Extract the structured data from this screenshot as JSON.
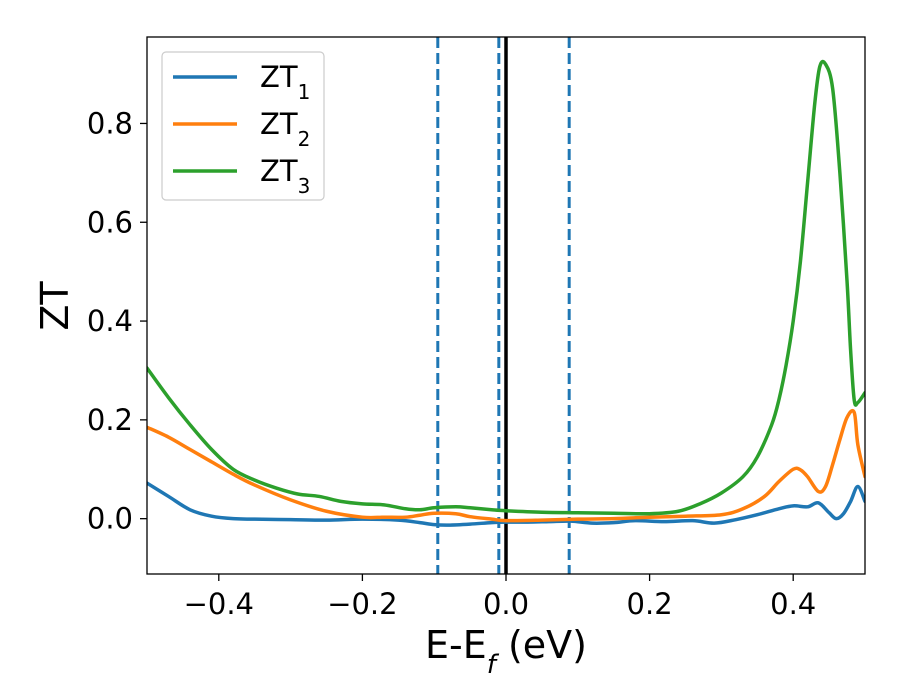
{
  "chart_data": {
    "type": "line",
    "title": "",
    "xlabel": {
      "main": "E-E",
      "sub": "f",
      "unit": " (eV)"
    },
    "ylabel": "ZT",
    "xlim": [
      -0.5,
      0.5
    ],
    "ylim": [
      -0.112,
      0.975
    ],
    "xticks": [
      -0.4,
      -0.2,
      0.0,
      0.2,
      0.4
    ],
    "xtick_labels": [
      "−0.4",
      "−0.2",
      "0.0",
      "0.2",
      "0.4"
    ],
    "yticks": [
      0.0,
      0.2,
      0.4,
      0.6,
      0.8
    ],
    "ytick_labels": [
      "0.0",
      "0.2",
      "0.4",
      "0.6",
      "0.8"
    ],
    "grid": false,
    "legend_position": "top-left",
    "series": [
      {
        "name": "ZT1",
        "legend_main": "ZT",
        "legend_sub": "1",
        "color": "#1f77b4",
        "x": [
          -0.5,
          -0.47,
          -0.44,
          -0.41,
          -0.38,
          -0.35,
          -0.3,
          -0.25,
          -0.2,
          -0.15,
          -0.12,
          -0.1,
          -0.08,
          -0.05,
          -0.02,
          0.0,
          0.03,
          0.06,
          0.09,
          0.12,
          0.15,
          0.18,
          0.22,
          0.26,
          0.29,
          0.32,
          0.35,
          0.38,
          0.4,
          0.42,
          0.435,
          0.45,
          0.46,
          0.47,
          0.48,
          0.49,
          0.5
        ],
        "y": [
          0.072,
          0.045,
          0.018,
          0.005,
          0.0,
          -0.001,
          -0.002,
          -0.003,
          -0.001,
          -0.003,
          -0.008,
          -0.012,
          -0.013,
          -0.011,
          -0.008,
          -0.007,
          -0.007,
          -0.006,
          -0.005,
          -0.009,
          -0.008,
          -0.004,
          -0.006,
          -0.004,
          -0.009,
          -0.002,
          0.008,
          0.02,
          0.026,
          0.024,
          0.032,
          0.012,
          0.0,
          0.01,
          0.035,
          0.065,
          0.035
        ]
      },
      {
        "name": "ZT2",
        "legend_main": "ZT",
        "legend_sub": "2",
        "color": "#ff7f0e",
        "x": [
          -0.5,
          -0.47,
          -0.44,
          -0.41,
          -0.38,
          -0.35,
          -0.3,
          -0.25,
          -0.2,
          -0.17,
          -0.14,
          -0.12,
          -0.1,
          -0.07,
          -0.05,
          -0.02,
          0.0,
          0.05,
          0.1,
          0.15,
          0.2,
          0.25,
          0.3,
          0.33,
          0.36,
          0.38,
          0.4,
          0.41,
          0.42,
          0.435,
          0.445,
          0.455,
          0.465,
          0.475,
          0.485,
          0.49,
          0.5
        ],
        "y": [
          0.185,
          0.165,
          0.14,
          0.115,
          0.09,
          0.068,
          0.038,
          0.015,
          0.003,
          0.003,
          0.003,
          0.007,
          0.011,
          0.01,
          0.004,
          -0.001,
          -0.004,
          -0.003,
          -0.001,
          0.0,
          0.003,
          0.005,
          0.008,
          0.02,
          0.045,
          0.075,
          0.1,
          0.099,
          0.085,
          0.055,
          0.065,
          0.11,
          0.16,
          0.205,
          0.215,
          0.15,
          0.085
        ]
      },
      {
        "name": "ZT3",
        "legend_main": "ZT",
        "legend_sub": "3",
        "color": "#2ca02c",
        "x": [
          -0.5,
          -0.47,
          -0.44,
          -0.41,
          -0.38,
          -0.35,
          -0.32,
          -0.29,
          -0.26,
          -0.23,
          -0.2,
          -0.17,
          -0.14,
          -0.12,
          -0.1,
          -0.07,
          -0.05,
          -0.02,
          0.0,
          0.05,
          0.1,
          0.15,
          0.2,
          0.24,
          0.27,
          0.3,
          0.33,
          0.35,
          0.37,
          0.38,
          0.39,
          0.4,
          0.41,
          0.42,
          0.43,
          0.437,
          0.445,
          0.455,
          0.465,
          0.475,
          0.48,
          0.485,
          0.49,
          0.5
        ],
        "y": [
          0.305,
          0.245,
          0.19,
          0.14,
          0.1,
          0.078,
          0.062,
          0.05,
          0.045,
          0.035,
          0.03,
          0.028,
          0.02,
          0.018,
          0.022,
          0.024,
          0.022,
          0.018,
          0.016,
          0.013,
          0.012,
          0.011,
          0.01,
          0.015,
          0.03,
          0.052,
          0.085,
          0.125,
          0.19,
          0.24,
          0.31,
          0.4,
          0.52,
          0.68,
          0.84,
          0.915,
          0.92,
          0.87,
          0.7,
          0.48,
          0.34,
          0.24,
          0.235,
          0.255
        ]
      }
    ],
    "reference_lines": [
      {
        "x": -0.095,
        "style": "dashed",
        "color": "#1f77b4"
      },
      {
        "x": -0.01,
        "style": "dashed",
        "color": "#1f77b4"
      },
      {
        "x": 0.088,
        "style": "dashed",
        "color": "#1f77b4"
      },
      {
        "x": 0.0,
        "style": "solid",
        "color": "#000000"
      }
    ]
  }
}
